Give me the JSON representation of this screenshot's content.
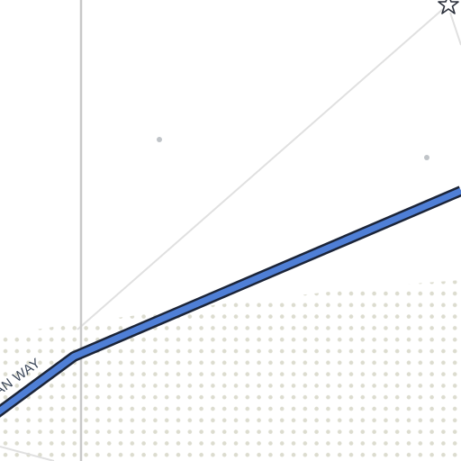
{
  "map": {
    "road_label": "AN WAY",
    "colors": {
      "background": "#ffffff",
      "road_fill": "#4f7fd6",
      "road_casing": "#1b2438",
      "dotted_area_dot": "#dcdccf",
      "vertical_line": "#c8c8c8",
      "thin_line": "#e0e0e0",
      "poi_dot": "#c0c4c8"
    },
    "markers": [
      {
        "name": "star-marker",
        "icon": "star-icon"
      }
    ],
    "points_of_interest_count": 2
  }
}
